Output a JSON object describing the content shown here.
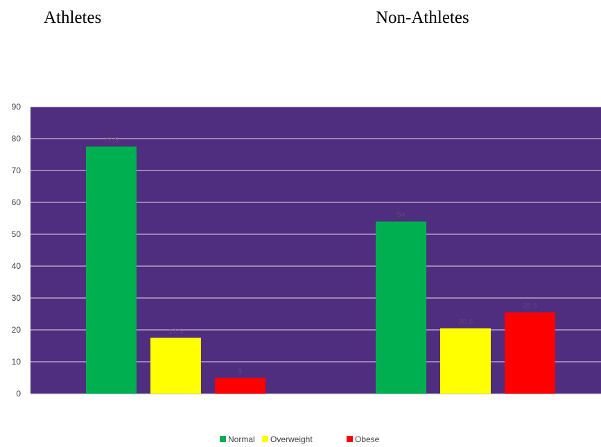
{
  "chart_data": {
    "type": "bar",
    "group_titles": [
      "Athletes",
      "Non-Athletes"
    ],
    "categories": [
      "Athletes",
      "Non-Athletes"
    ],
    "series": [
      {
        "name": "Normal",
        "color": "#00b050",
        "values": [
          77.5,
          54
        ],
        "labels": [
          "77.5",
          "54"
        ]
      },
      {
        "name": "Overweight",
        "color": "#ffff00",
        "values": [
          17.5,
          20.5
        ],
        "labels": [
          "17.5",
          "20.5"
        ]
      },
      {
        "name": "Obese",
        "color": "#ff0000",
        "values": [
          5,
          25.5
        ],
        "labels": [
          "5",
          "25.5"
        ]
      }
    ],
    "ylim": [
      0,
      90
    ],
    "yticks": [
      0,
      10,
      20,
      30,
      40,
      50,
      60,
      70,
      80,
      90
    ],
    "plot_background": "#4f2d7f",
    "grid": true,
    "legend_position": "bottom"
  }
}
